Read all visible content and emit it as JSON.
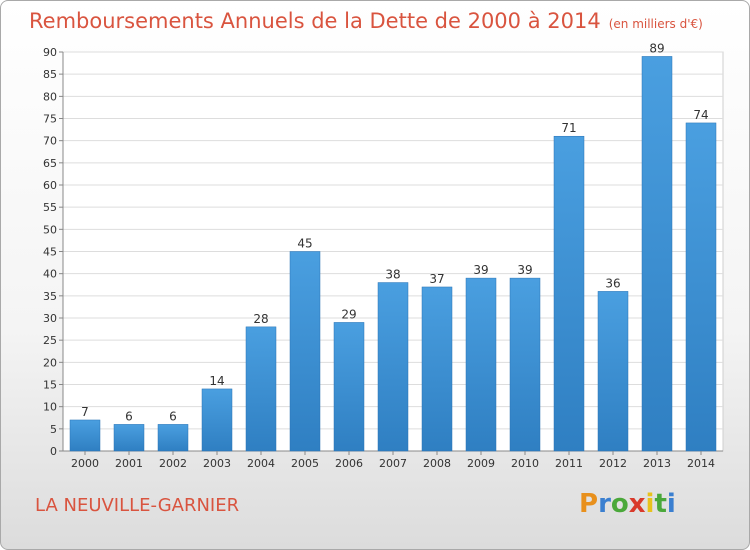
{
  "title": {
    "main": "Remboursements Annuels de la Dette de 2000 à 2014",
    "unit": "(en milliers d'€)"
  },
  "place_name": "LA NEUVILLE-GARNIER",
  "logo": {
    "text": "Proxiti",
    "letters": [
      "P",
      "r",
      "o",
      "x",
      "i",
      "t",
      "i"
    ],
    "colors": [
      "#e8901c",
      "#3a7fd0",
      "#4aa83a",
      "#d93a2b",
      "#e8c21c",
      "#4aa83a",
      "#3a7fd0"
    ]
  },
  "chart_data": {
    "type": "bar",
    "categories": [
      "2000",
      "2001",
      "2002",
      "2003",
      "2004",
      "2005",
      "2006",
      "2007",
      "2008",
      "2009",
      "2010",
      "2011",
      "2012",
      "2013",
      "2014"
    ],
    "values": [
      7,
      6,
      6,
      14,
      28,
      45,
      29,
      38,
      37,
      39,
      39,
      71,
      36,
      89,
      74
    ],
    "ylim": [
      0,
      90
    ],
    "yticks": [
      0,
      5,
      10,
      15,
      20,
      25,
      30,
      35,
      40,
      45,
      50,
      55,
      60,
      65,
      70,
      75,
      80,
      85,
      90
    ],
    "grid": true,
    "bar_color": "#4a9fe0",
    "bar_color_dark": "#2f7fc2"
  }
}
